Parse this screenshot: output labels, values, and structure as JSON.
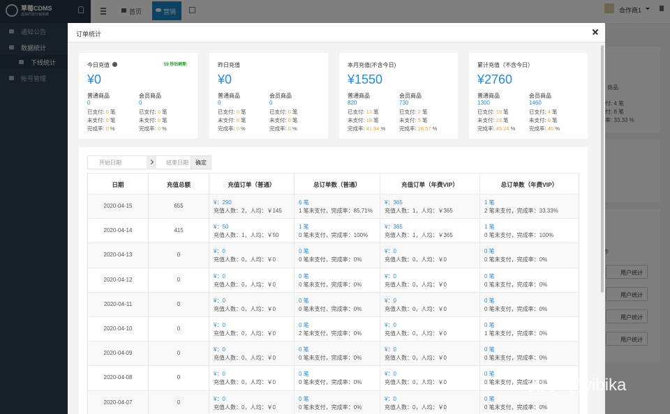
{
  "sidebar": {
    "brand": "草莓CDMS",
    "brand_sub": "虚拟内容分销系统",
    "menu": [
      "通知公告",
      "数据统计",
      "下线统计",
      "帐号管理"
    ]
  },
  "topbar": {
    "nav": [
      "首页",
      "营销"
    ],
    "user": "合作商1"
  },
  "background": {
    "texts": [
      "商品",
      "付: 4 笔",
      "付: 8 笔",
      "率: 33.33 %",
      "作"
    ],
    "buttons": [
      "用户统计",
      "用户统计",
      "用户统计",
      "用户统计"
    ]
  },
  "watermark": "知乎 @yibika",
  "modal": {
    "title": "订单统计",
    "refresh": "59 秒后刷新",
    "labels": {
      "groups": [
        "普通商品",
        "会员商品"
      ],
      "paid": "已支付:",
      "unpaid": "未支付:",
      "rate": "完成率:",
      "count_unit": "笔",
      "rate_unit": "%"
    },
    "cards": [
      {
        "title": "今日充值",
        "amount": "¥0",
        "groups": [
          {
            "total": 0,
            "paid": 0,
            "unpaid": 0,
            "rate": 0
          },
          {
            "total": 0,
            "paid": 0,
            "unpaid": 0,
            "rate": 0
          }
        ]
      },
      {
        "title": "昨日充值",
        "amount": "¥0",
        "groups": [
          {
            "total": 0,
            "paid": 0,
            "unpaid": 0,
            "rate": 0
          },
          {
            "total": 0,
            "paid": 0,
            "unpaid": 0,
            "rate": 0
          }
        ]
      },
      {
        "title": "本月充值(不含今日)",
        "amount": "¥1550",
        "groups": [
          {
            "total": 820,
            "paid": 13,
            "unpaid": 18,
            "rate": 41.94
          },
          {
            "total": 730,
            "paid": 2,
            "unpaid": 5,
            "rate": 28.57
          }
        ]
      },
      {
        "title": "累计充值（不含今日）",
        "amount": "¥2760",
        "groups": [
          {
            "total": 1300,
            "paid": 19,
            "unpaid": 23,
            "rate": 45.24
          },
          {
            "total": 1460,
            "paid": 4,
            "unpaid": 6,
            "rate": 40
          }
        ]
      }
    ],
    "filter": {
      "start": "开始日期",
      "end": "结束日期",
      "confirm": "确定"
    },
    "table": {
      "headers": [
        "日期",
        "充值总额",
        "充值订单（普通）",
        "总订单数（普通）",
        "充值订单（年费VIP）",
        "总订单数（年费VIP）"
      ],
      "rows": [
        {
          "date": "2020-04-15",
          "total": 655,
          "cells": [
            [
              "¥：290",
              "充值人数：2，人均：￥145"
            ],
            [
              "6 笔",
              "1 笔未支付，完成率：85.71%"
            ],
            [
              "¥：365",
              "充值人数：1，人均：￥365"
            ],
            [
              "1 笔",
              "2 笔未支付，完成率：33.33%"
            ]
          ]
        },
        {
          "date": "2020-04-14",
          "total": 415,
          "cells": [
            [
              "¥：50",
              "充值人数：1，人均：￥50"
            ],
            [
              "1 笔",
              "0 笔未支付，完成率：100%"
            ],
            [
              "¥：365",
              "充值人数：1，人均：￥365"
            ],
            [
              "1 笔",
              "0 笔未支付，完成率：100%"
            ]
          ]
        },
        {
          "date": "2020-04-13",
          "total": 0,
          "cells": [
            [
              "¥：0",
              "充值人数：0，人均：￥0"
            ],
            [
              "0 笔",
              "0 笔未支付，完成率：0%"
            ],
            [
              "¥：0",
              "充值人数：0，人均：￥0"
            ],
            [
              "0 笔",
              "0 笔未支付，完成率：0%"
            ]
          ]
        },
        {
          "date": "2020-04-12",
          "total": 0,
          "cells": [
            [
              "¥：0",
              "充值人数：0，人均：￥0"
            ],
            [
              "0 笔",
              "0 笔未支付，完成率：0%"
            ],
            [
              "¥：0",
              "充值人数：0，人均：￥0"
            ],
            [
              "0 笔",
              "0 笔未支付，完成率：0%"
            ]
          ]
        },
        {
          "date": "2020-04-11",
          "total": 0,
          "cells": [
            [
              "¥：0",
              "充值人数：0，人均：￥0"
            ],
            [
              "0 笔",
              "0 笔未支付，完成率：0%"
            ],
            [
              "¥：0",
              "充值人数：0，人均：￥0"
            ],
            [
              "0 笔",
              "0 笔未支付，完成率：0%"
            ]
          ]
        },
        {
          "date": "2020-04-10",
          "total": 0,
          "cells": [
            [
              "¥：0",
              "充值人数：0，人均：￥0"
            ],
            [
              "0 笔",
              "2 笔未支付，完成率：0%"
            ],
            [
              "¥：0",
              "充值人数：0，人均：￥0"
            ],
            [
              "0 笔",
              "1 笔未支付，完成率：0%"
            ]
          ]
        },
        {
          "date": "2020-04-09",
          "total": 0,
          "cells": [
            [
              "¥：0",
              "充值人数：0，人均：￥0"
            ],
            [
              "0 笔",
              "0 笔未支付，完成率：0%"
            ],
            [
              "¥：0",
              "充值人数：0，人均：￥0"
            ],
            [
              "0 笔",
              "0 笔未支付，完成率：0%"
            ]
          ]
        },
        {
          "date": "2020-04-08",
          "total": 0,
          "cells": [
            [
              "¥：0",
              "充值人数：0，人均：￥0"
            ],
            [
              "0 笔",
              "0 笔未支付，完成率：0%"
            ],
            [
              "¥：0",
              "充值人数：0，人均：￥0"
            ],
            [
              "0 笔",
              "0 笔未支付，完成率：0%"
            ]
          ]
        },
        {
          "date": "2020-04-07",
          "total": 0,
          "cells": [
            [
              "¥：0",
              "充值人数：0，人均：￥0"
            ],
            [
              "0 笔",
              "0 笔未支付，完成率：0%"
            ],
            [
              "¥：0",
              "充值人数：0，人均：￥0"
            ],
            [
              "0 笔",
              "0 笔未支付，完成率：0%"
            ]
          ]
        }
      ]
    }
  }
}
